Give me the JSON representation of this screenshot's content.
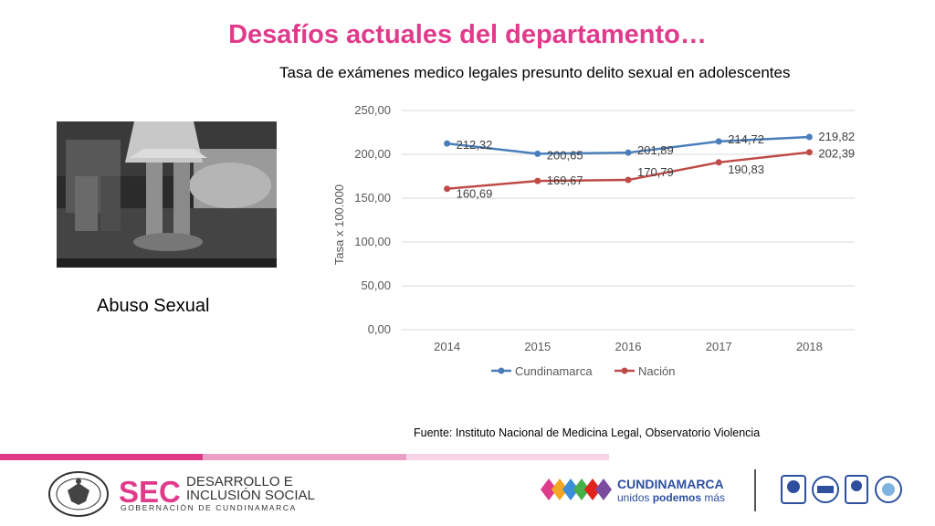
{
  "slide": {
    "title": "Desafíos actuales del departamento…",
    "chart_heading": "Tasa de exámenes medico legales presunto delito sexual en adolescentes",
    "photo_caption": "Abuso Sexual",
    "source": "Fuente: Instituto Nacional de Medicina Legal, Observatorio Violencia"
  },
  "footer": {
    "sec_brand": "SEC",
    "sec_line1": "DESARROLLO E",
    "sec_line2": "INCLUSIÓN SOCIAL",
    "sec_line3": "GOBERNACIÓN DE CUNDINAMARCA",
    "cund_name": "CUNDINAMARCA",
    "cund_slogan_a": "unidos ",
    "cund_slogan_b": "podemos",
    "cund_slogan_c": " más",
    "accent_colors": [
      "#e03b8b",
      "#ec9fc6",
      "#f6d3e6"
    ]
  },
  "chart_data": {
    "type": "line",
    "title": "Tasa de exámenes medico legales presunto delito sexual en adolescentes",
    "ylabel": "Tasa x 100.000",
    "xlabel": "",
    "categories": [
      "2014",
      "2015",
      "2016",
      "2017",
      "2018"
    ],
    "ylim": [
      0,
      250
    ],
    "yticks": [
      "0,00",
      "50,00",
      "100,00",
      "150,00",
      "200,00",
      "250,00"
    ],
    "grid": true,
    "legend": "bottom",
    "series": [
      {
        "name": "Cundinamarca",
        "color": "#4a7ebb",
        "values": [
          212.32,
          200.65,
          201.89,
          214.72,
          219.82
        ],
        "labels": [
          "212,32",
          "200,65",
          "201,89",
          "214,72",
          "219,82"
        ]
      },
      {
        "name": "Nación",
        "color": "#be4b48",
        "values": [
          160.69,
          169.67,
          170.79,
          190.83,
          202.39
        ],
        "labels": [
          "160,69",
          "169,67",
          "170,79",
          "190,83",
          "202,39"
        ]
      }
    ]
  }
}
